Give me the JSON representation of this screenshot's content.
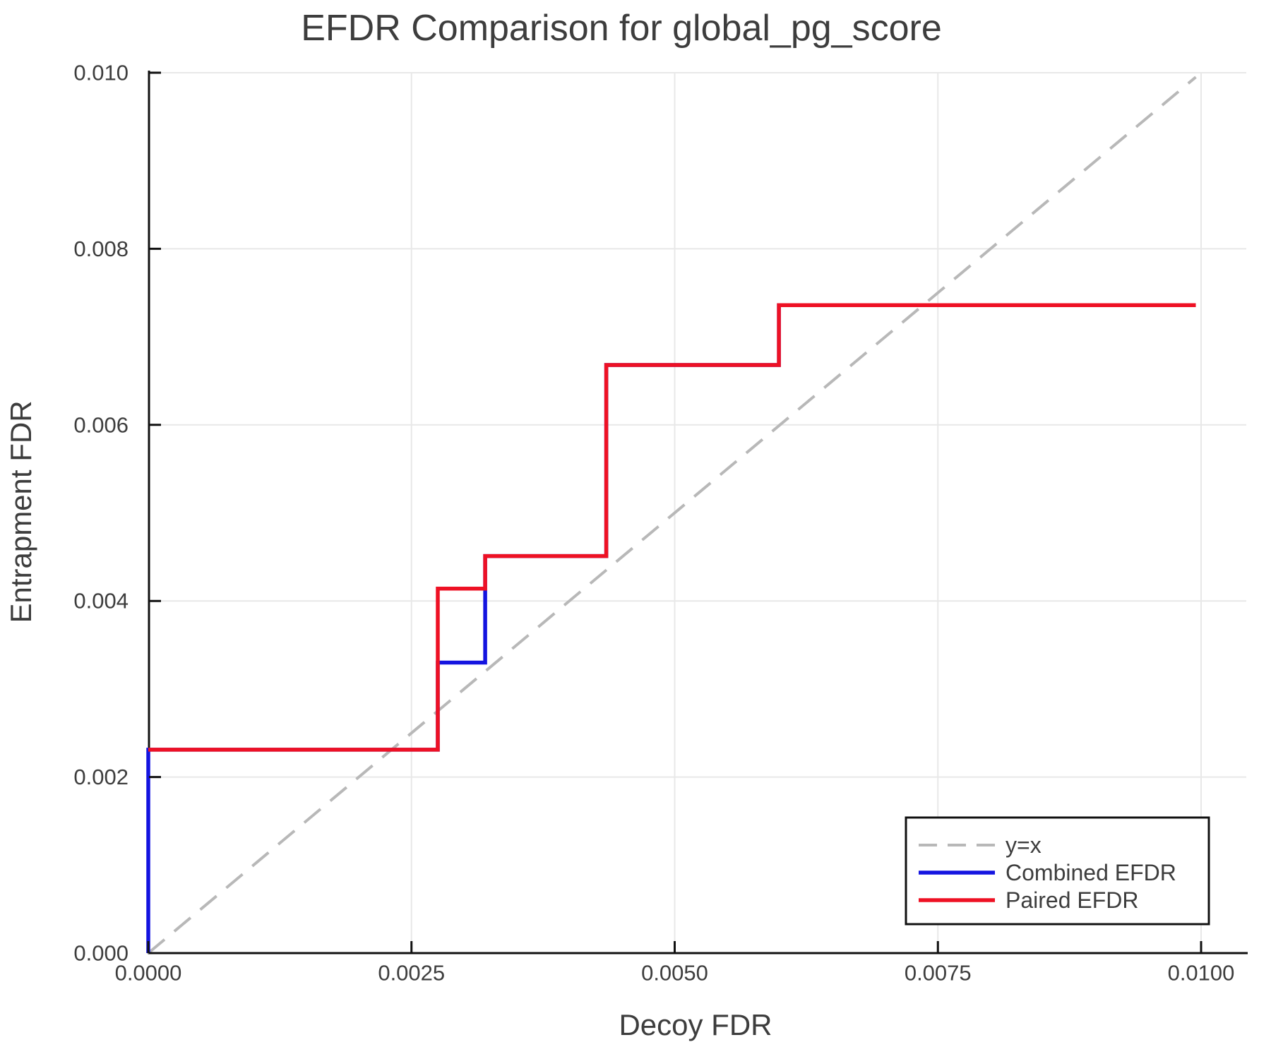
{
  "title": "EFDR Comparison for global_pg_score",
  "chart_data": {
    "type": "line",
    "title": "EFDR Comparison for global_pg_score",
    "xlabel": "Decoy FDR",
    "ylabel": "Entrapment FDR",
    "xlim": [
      0,
      0.01045
    ],
    "ylim": [
      0,
      0.01002
    ],
    "grid": true,
    "legend_position": "lower right",
    "x_tick_values": [
      0,
      0.0025,
      0.005,
      0.0075,
      0.01
    ],
    "x_tick_labels": [
      "0.0000",
      "0.0025",
      "0.0050",
      "0.0075",
      "0.0100"
    ],
    "y_tick_values": [
      0,
      0.002,
      0.004,
      0.006,
      0.008,
      0.01
    ],
    "y_tick_labels": [
      "0.000",
      "0.002",
      "0.004",
      "0.006",
      "0.008",
      "0.010"
    ],
    "colors": {
      "grid": "#e8e8e8",
      "spine": "#111111",
      "text": "#3d3d3d",
      "background": "#ffffff"
    },
    "series": [
      {
        "name": "y=x",
        "mode": "linear",
        "style": "dashed",
        "color": "#b8b8b8",
        "width": 4,
        "points": [
          [
            0,
            0
          ],
          [
            0.00995,
            0.00995
          ]
        ]
      },
      {
        "name": "Combined EFDR",
        "mode": "steps-post",
        "style": "solid",
        "color": "#1414e0",
        "width": 5.5,
        "points": [
          [
            0,
            0
          ],
          [
            0,
            0.00231
          ],
          [
            0.00275,
            0.0033
          ],
          [
            0.0032,
            0.00451
          ],
          [
            0.00435,
            0.00668
          ],
          [
            0.00599,
            0.00736
          ],
          [
            0.00995,
            0.00736
          ]
        ]
      },
      {
        "name": "Paired EFDR",
        "mode": "steps-post",
        "style": "solid",
        "color": "#ee1124",
        "width": 5.5,
        "points": [
          [
            0,
            0.00231
          ],
          [
            0.00275,
            0.00414
          ],
          [
            0.0032,
            0.00451
          ],
          [
            0.00435,
            0.00668
          ],
          [
            0.00599,
            0.00736
          ],
          [
            0.00995,
            0.00736
          ]
        ]
      }
    ]
  }
}
